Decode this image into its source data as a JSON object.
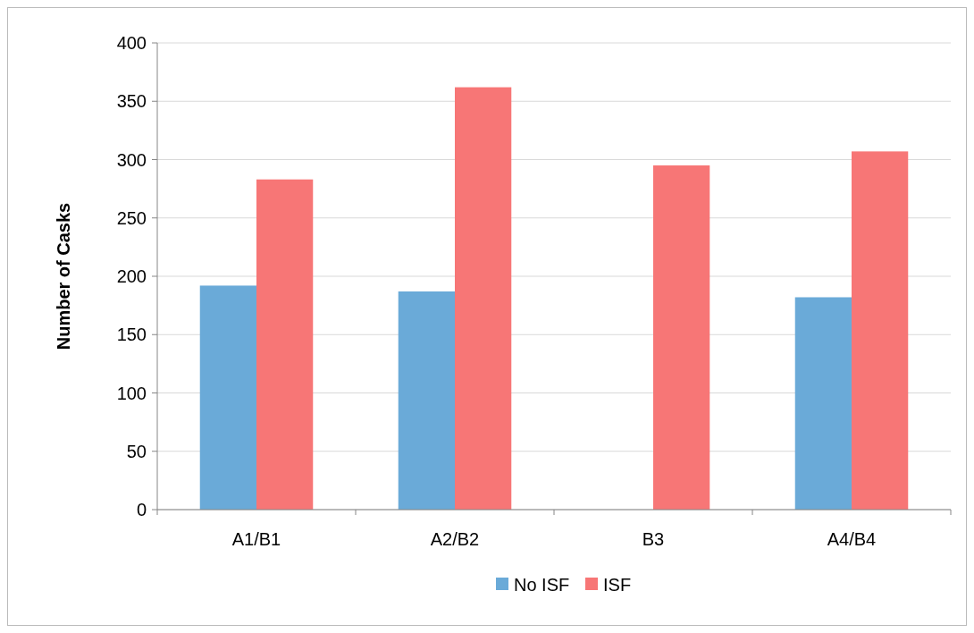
{
  "chart_data": {
    "type": "bar",
    "ylabel": "Number of Casks",
    "categories": [
      "A1/B1",
      "A2/B2",
      "B3",
      "A4/B4"
    ],
    "series": [
      {
        "name": "No ISF",
        "color": "#6aaad8",
        "values": [
          192,
          187,
          null,
          182
        ]
      },
      {
        "name": "ISF",
        "color": "#f77676",
        "values": [
          283,
          362,
          295,
          307
        ]
      }
    ],
    "ylim": [
      0,
      400
    ],
    "yticks": [
      0,
      50,
      100,
      150,
      200,
      250,
      300,
      350,
      400
    ],
    "grid": "y",
    "legend": "bottom"
  }
}
